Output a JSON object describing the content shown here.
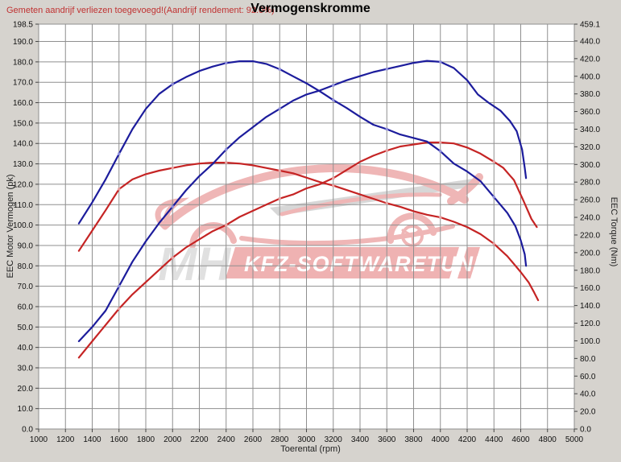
{
  "header": {
    "note": "Gemeten aandrijf verliezen toegevoegd!(Aandrijf rendement: 92.0%)",
    "title": "Vermogenskromme"
  },
  "watermark": {
    "initials": "MH",
    "brand": "KFZ-SOFTWARETUNING"
  },
  "colors": {
    "window_bg": "#d6d3ce",
    "plot_bg": "#ffffff",
    "grid": "#8f8f8f",
    "note_red": "#c03232",
    "curve_blue": "#1c1c9c",
    "curve_red": "#c52424",
    "marker_blue": "#8f8fdd",
    "marker_red": "#e9a0a0",
    "watermark_pink": "#eca4a4",
    "watermark_gray": "#cecece"
  },
  "chart_data": {
    "type": "line",
    "title": "Vermogenskromme",
    "xlabel": "Toerental (rpm)",
    "ylabel_left": "EEC Motor Vermogen (pk)",
    "ylabel_right": "EEC Torque (Nm)",
    "grid": true,
    "legend": "none",
    "x_range": [
      1000,
      5000
    ],
    "y_left_range": [
      0,
      198.5
    ],
    "y_right_range": [
      0,
      459.1
    ],
    "x_ticks": [
      "1000",
      "1200",
      "1400",
      "1600",
      "1800",
      "2000",
      "2200",
      "2400",
      "2600",
      "2800",
      "3000",
      "3200",
      "3400",
      "3600",
      "3800",
      "4000",
      "4200",
      "4400",
      "4600",
      "4800",
      "5000"
    ],
    "y_left_ticks": [
      "0.0",
      "10.0",
      "20.0",
      "30.0",
      "40.0",
      "50.0",
      "60.0",
      "70.0",
      "80.0",
      "90.0",
      "100.0",
      "110.0",
      "120.0",
      "130.0",
      "140.0",
      "150.0",
      "160.0",
      "170.0",
      "180.0",
      "190.0",
      "198.5"
    ],
    "y_right_ticks": [
      "0.0",
      "20.0",
      "40.0",
      "60.0",
      "80.0",
      "100.0",
      "120.0",
      "140.0",
      "160.0",
      "180.0",
      "200.0",
      "220.0",
      "240.0",
      "260.0",
      "280.0",
      "300.0",
      "320.0",
      "340.0",
      "360.0",
      "380.0",
      "400.0",
      "420.0",
      "440.0",
      "459.1"
    ],
    "series": [
      {
        "name": "torque-red-curve",
        "axis": "right",
        "unit": "Nm",
        "color": "#c52424",
        "marker": "#e9a0a0",
        "points": [
          [
            1300,
            202
          ],
          [
            1400,
            225
          ],
          [
            1500,
            248
          ],
          [
            1600,
            272
          ],
          [
            1700,
            283
          ],
          [
            1800,
            289
          ],
          [
            1900,
            293
          ],
          [
            2000,
            296
          ],
          [
            2100,
            299
          ],
          [
            2200,
            301
          ],
          [
            2300,
            302
          ],
          [
            2400,
            302
          ],
          [
            2500,
            301
          ],
          [
            2600,
            299
          ],
          [
            2700,
            296
          ],
          [
            2800,
            293
          ],
          [
            2900,
            290
          ],
          [
            3000,
            285
          ],
          [
            3100,
            280
          ],
          [
            3200,
            276
          ],
          [
            3300,
            271
          ],
          [
            3400,
            266
          ],
          [
            3500,
            261
          ],
          [
            3600,
            256
          ],
          [
            3700,
            252
          ],
          [
            3800,
            247
          ],
          [
            3900,
            243
          ],
          [
            4000,
            240
          ],
          [
            4100,
            235
          ],
          [
            4200,
            229
          ],
          [
            4300,
            221
          ],
          [
            4400,
            210
          ],
          [
            4500,
            196
          ],
          [
            4600,
            178
          ],
          [
            4660,
            166
          ],
          [
            4700,
            155
          ],
          [
            4730,
            146
          ]
        ]
      },
      {
        "name": "vermogen-red-curve",
        "axis": "left",
        "unit": "pk",
        "color": "#c52424",
        "marker": "#e9a0a0",
        "points": [
          [
            1300,
            35
          ],
          [
            1400,
            43
          ],
          [
            1500,
            51
          ],
          [
            1600,
            59
          ],
          [
            1700,
            66
          ],
          [
            1800,
            72
          ],
          [
            1900,
            78
          ],
          [
            2000,
            84
          ],
          [
            2100,
            89
          ],
          [
            2200,
            93
          ],
          [
            2300,
            97
          ],
          [
            2400,
            100
          ],
          [
            2500,
            104
          ],
          [
            2600,
            107
          ],
          [
            2700,
            110
          ],
          [
            2800,
            113
          ],
          [
            2900,
            115
          ],
          [
            3000,
            118
          ],
          [
            3100,
            120
          ],
          [
            3200,
            123
          ],
          [
            3300,
            127
          ],
          [
            3400,
            131
          ],
          [
            3500,
            134
          ],
          [
            3600,
            136.5
          ],
          [
            3700,
            138.5
          ],
          [
            3800,
            139.5
          ],
          [
            3900,
            140.5
          ],
          [
            4000,
            140.5
          ],
          [
            4100,
            140
          ],
          [
            4200,
            138
          ],
          [
            4300,
            135
          ],
          [
            4400,
            131
          ],
          [
            4470,
            128
          ],
          [
            4550,
            122
          ],
          [
            4620,
            112
          ],
          [
            4680,
            103
          ],
          [
            4720,
            99
          ]
        ]
      },
      {
        "name": "torque-blue-curve",
        "axis": "right",
        "unit": "Nm",
        "color": "#1c1c9c",
        "marker": "#8f8fdd",
        "points": [
          [
            1300,
            233
          ],
          [
            1400,
            257
          ],
          [
            1500,
            283
          ],
          [
            1600,
            312
          ],
          [
            1700,
            340
          ],
          [
            1800,
            363
          ],
          [
            1900,
            380
          ],
          [
            2000,
            391
          ],
          [
            2100,
            399
          ],
          [
            2200,
            406
          ],
          [
            2300,
            411
          ],
          [
            2400,
            415
          ],
          [
            2500,
            417
          ],
          [
            2600,
            417
          ],
          [
            2700,
            414
          ],
          [
            2800,
            408
          ],
          [
            2900,
            400
          ],
          [
            3000,
            392
          ],
          [
            3100,
            383
          ],
          [
            3200,
            373
          ],
          [
            3300,
            364
          ],
          [
            3400,
            354
          ],
          [
            3500,
            345
          ],
          [
            3600,
            340
          ],
          [
            3700,
            334
          ],
          [
            3800,
            330
          ],
          [
            3900,
            326
          ],
          [
            4000,
            315
          ],
          [
            4100,
            301
          ],
          [
            4200,
            292
          ],
          [
            4300,
            281
          ],
          [
            4400,
            263
          ],
          [
            4500,
            245
          ],
          [
            4560,
            230
          ],
          [
            4600,
            214
          ],
          [
            4630,
            198
          ],
          [
            4640,
            185
          ]
        ]
      },
      {
        "name": "vermogen-blue-curve",
        "axis": "left",
        "unit": "pk",
        "color": "#1c1c9c",
        "marker": "#8f8fdd",
        "points": [
          [
            1300,
            43
          ],
          [
            1400,
            50
          ],
          [
            1500,
            58
          ],
          [
            1600,
            70
          ],
          [
            1700,
            82
          ],
          [
            1800,
            92
          ],
          [
            1900,
            101
          ],
          [
            2000,
            109
          ],
          [
            2100,
            117
          ],
          [
            2200,
            124
          ],
          [
            2300,
            130
          ],
          [
            2400,
            137
          ],
          [
            2500,
            143
          ],
          [
            2600,
            148
          ],
          [
            2700,
            153
          ],
          [
            2800,
            157
          ],
          [
            2900,
            161
          ],
          [
            3000,
            164
          ],
          [
            3100,
            166
          ],
          [
            3200,
            168.5
          ],
          [
            3300,
            171
          ],
          [
            3400,
            173
          ],
          [
            3500,
            175
          ],
          [
            3600,
            176.5
          ],
          [
            3700,
            178
          ],
          [
            3800,
            179.5
          ],
          [
            3900,
            180.5
          ],
          [
            4000,
            180
          ],
          [
            4100,
            177
          ],
          [
            4200,
            171
          ],
          [
            4280,
            164
          ],
          [
            4360,
            160
          ],
          [
            4450,
            156
          ],
          [
            4520,
            151
          ],
          [
            4570,
            146
          ],
          [
            4610,
            137
          ],
          [
            4630,
            128
          ],
          [
            4640,
            123
          ]
        ]
      }
    ]
  }
}
